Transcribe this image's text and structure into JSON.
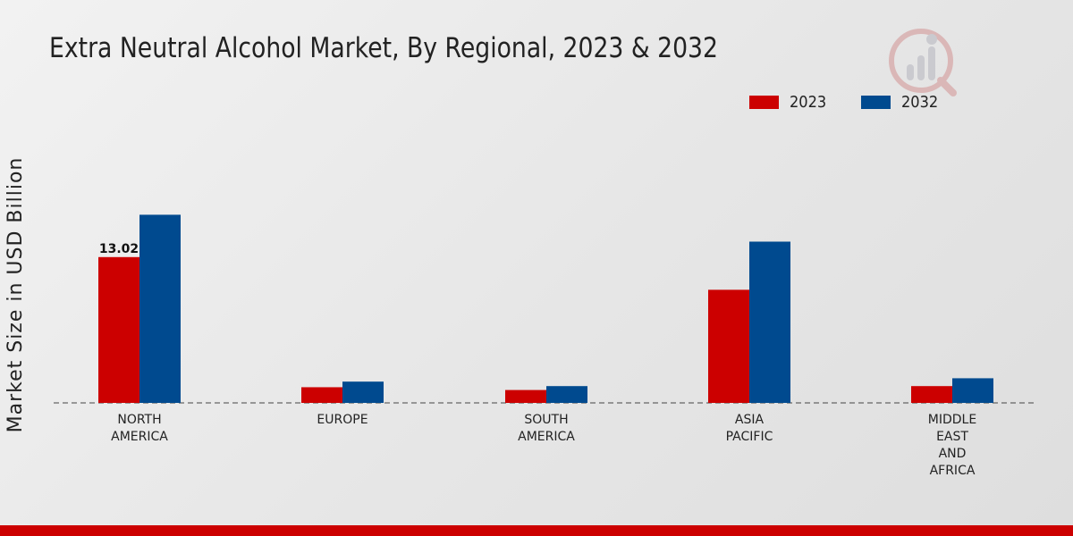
{
  "title": "Extra Neutral Alcohol Market, By Regional, 2023 & 2032",
  "colors": {
    "series_2023": "#cc0000",
    "series_2032": "#004a8f",
    "accent_bar": "#cc0000"
  },
  "chart_data": {
    "type": "bar",
    "title": "Extra Neutral Alcohol Market, By Regional, 2023 & 2032",
    "xlabel": "",
    "ylabel": "Market Size in USD Billion",
    "categories": [
      [
        "NORTH",
        "AMERICA"
      ],
      [
        "EUROPE"
      ],
      [
        "SOUTH",
        "AMERICA"
      ],
      [
        "ASIA",
        "PACIFIC"
      ],
      [
        "MIDDLE",
        "EAST",
        "AND",
        "AFRICA"
      ]
    ],
    "series": [
      {
        "name": "2023",
        "color": "#cc0000",
        "values": [
          13.02,
          1.4,
          1.15,
          10.1,
          1.5
        ]
      },
      {
        "name": "2032",
        "color": "#004a8f",
        "values": [
          16.8,
          1.9,
          1.5,
          14.4,
          2.2
        ]
      }
    ],
    "data_labels": [
      {
        "series": 0,
        "index": 0,
        "text": "13.02"
      }
    ],
    "ylim": [
      0,
      28
    ],
    "grid": false,
    "legend": "top-right"
  }
}
